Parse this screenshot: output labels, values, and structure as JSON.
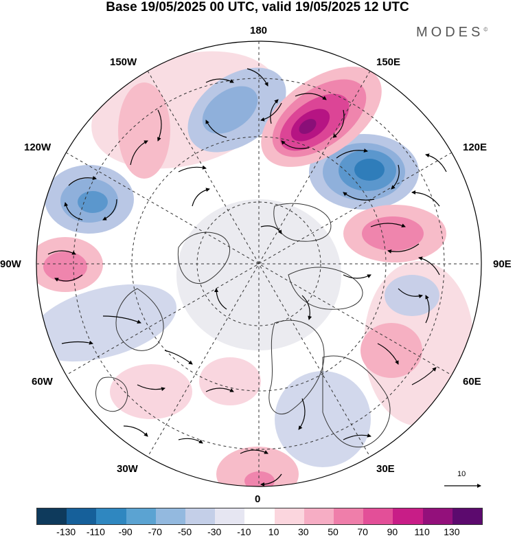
{
  "title": "Base 19/05/2025 00 UTC, valid 19/05/2025 12 UTC",
  "brand": "MODES",
  "brand_mark": "©",
  "longitude_labels": {
    "top": "180",
    "top_left": "150W",
    "top_right": "150E",
    "upper_left": "120W",
    "upper_right": "120E",
    "left": "90W",
    "right": "90E",
    "lower_left": "60W",
    "lower_right": "60E",
    "bottom_left": "30W",
    "bottom_right": "30E",
    "bottom": "0"
  },
  "reference_vector_label": "10",
  "colorbar": {
    "colors": [
      "#0e3a5c",
      "#16609a",
      "#2f87c0",
      "#5ba3d2",
      "#93b9df",
      "#c4cfe8",
      "#e6e6f2",
      "#ffffff",
      "#fbd6de",
      "#f6adc4",
      "#ef7eaa",
      "#e34f98",
      "#c81d87",
      "#93107b",
      "#5c0a6e"
    ],
    "tick_labels": [
      "-130",
      "-110",
      "-90",
      "-70",
      "-50",
      "-30",
      "-10",
      "10",
      "30",
      "50",
      "70",
      "90",
      "110",
      "130"
    ]
  }
}
